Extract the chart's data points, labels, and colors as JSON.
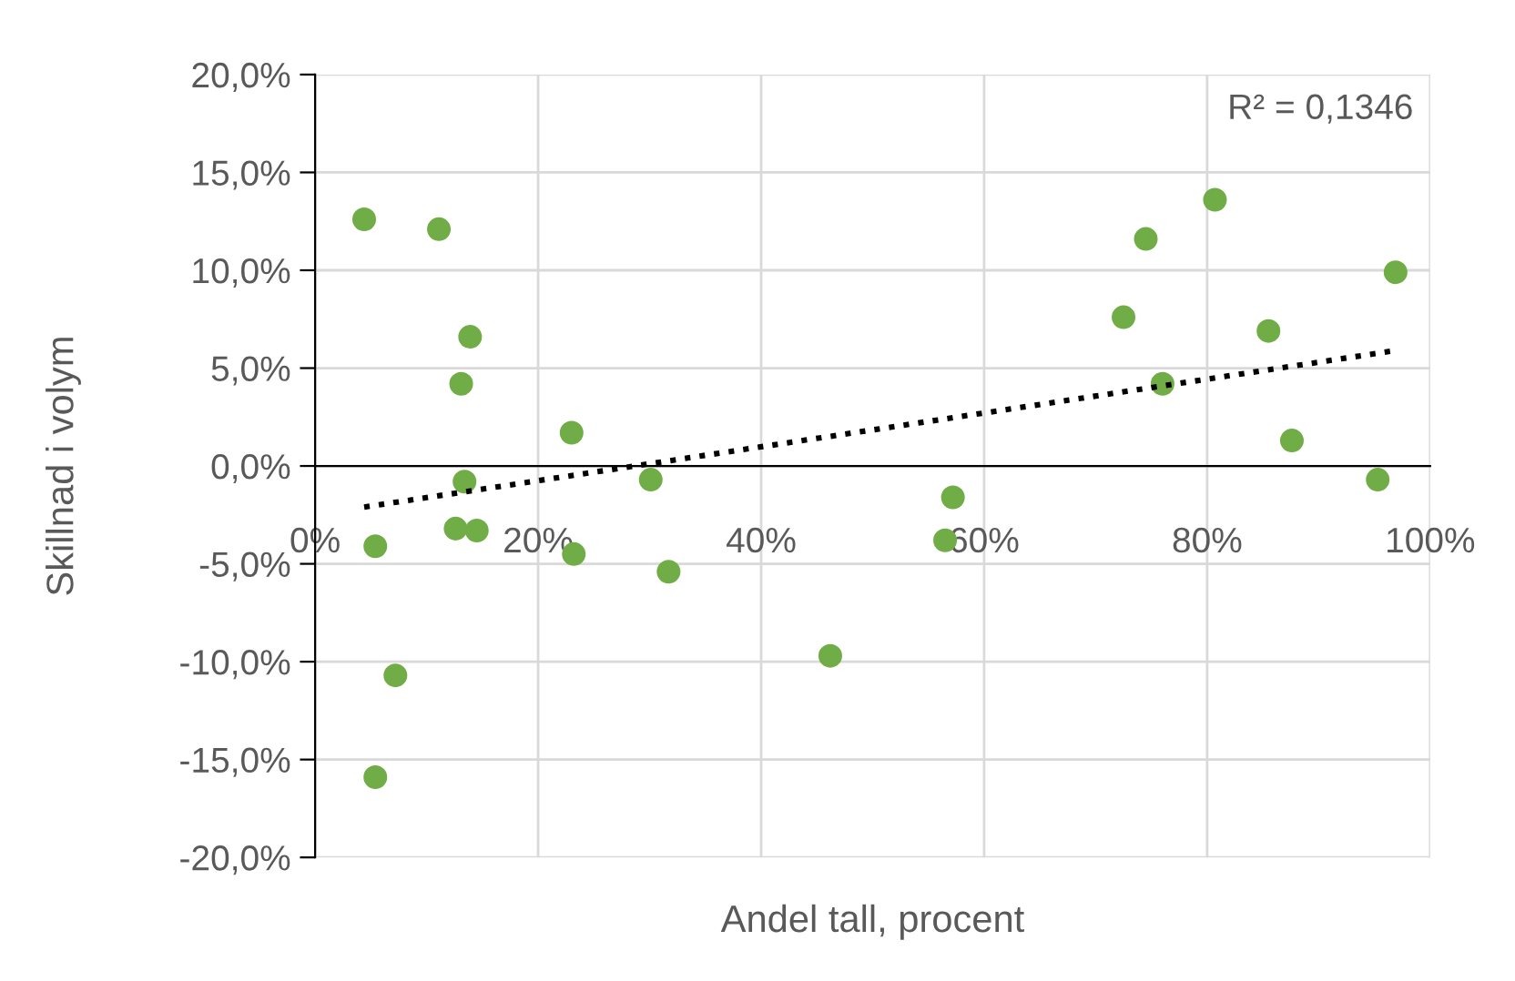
{
  "chart_data": {
    "type": "scatter",
    "xlabel": "Andel tall, procent",
    "ylabel": "Skillnad i volym",
    "annotations": [
      "R² = 0,1346"
    ],
    "series": [
      {
        "color": "#70ad47",
        "marker": "circle",
        "x": [
          4.4,
          11.1,
          13.9,
          13.1,
          23.0,
          13.4,
          12.6,
          14.5,
          5.4,
          23.2,
          7.2,
          5.4,
          30.1,
          31.7,
          46.2,
          57.2,
          56.5,
          72.5,
          74.5,
          76.0,
          80.7,
          85.5,
          87.6,
          95.3,
          96.9
        ],
        "values": [
          12.6,
          12.1,
          6.6,
          4.2,
          1.7,
          -0.8,
          -3.2,
          -3.3,
          -4.1,
          -4.5,
          -10.7,
          -15.9,
          -0.7,
          -5.4,
          -9.7,
          -1.6,
          -3.8,
          7.6,
          11.6,
          4.2,
          13.6,
          6.9,
          1.3,
          -0.7,
          9.9
        ]
      },
      {
        "type": "line",
        "color": "#000000",
        "line_style": "dotted",
        "marker": "none",
        "x": [
          4.4,
          96.9
        ],
        "values": [
          -2.1,
          5.9
        ]
      }
    ],
    "xlim": [
      0,
      100
    ],
    "ylim": [
      -20,
      20
    ],
    "xticks": [
      {
        "value": 0,
        "label": "0%"
      },
      {
        "value": 20,
        "label": "20%"
      },
      {
        "value": 40,
        "label": "40%"
      },
      {
        "value": 60,
        "label": "60%"
      },
      {
        "value": 80,
        "label": "80%"
      },
      {
        "value": 100,
        "label": "100%"
      }
    ],
    "yticks": [
      {
        "value": -20,
        "label": "-20,0%"
      },
      {
        "value": -15,
        "label": "-15,0%"
      },
      {
        "value": -10,
        "label": "-10,0%"
      },
      {
        "value": -5,
        "label": "-5,0%"
      },
      {
        "value": 0,
        "label": "0,0%"
      },
      {
        "value": 5,
        "label": "5,0%"
      },
      {
        "value": 10,
        "label": "10,0%"
      },
      {
        "value": 15,
        "label": "15,0%"
      },
      {
        "value": 20,
        "label": "20,0%"
      }
    ],
    "grid": true,
    "legend": false
  }
}
